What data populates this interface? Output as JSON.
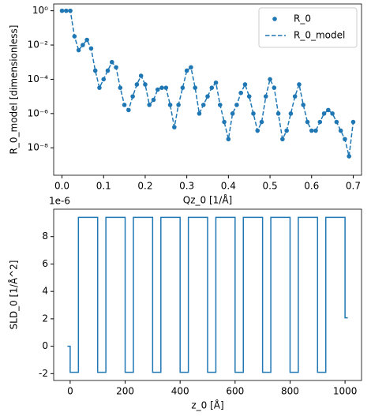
{
  "chart_data": [
    {
      "type": "line",
      "ylabel": "R_0_model [dimensionless]",
      "xlabel": "Qz_0 [1/Å]",
      "log_y": true,
      "legend": "upper right",
      "x": [
        0,
        0.01,
        0.02,
        0.03,
        0.04,
        0.05,
        0.06,
        0.07,
        0.08,
        0.09,
        0.1,
        0.11,
        0.12,
        0.13,
        0.14,
        0.15,
        0.16,
        0.17,
        0.18,
        0.19,
        0.2,
        0.21,
        0.22,
        0.23,
        0.24,
        0.25,
        0.26,
        0.27,
        0.28,
        0.29,
        0.3,
        0.31,
        0.32,
        0.33,
        0.34,
        0.35,
        0.36,
        0.37,
        0.38,
        0.39,
        0.4,
        0.41,
        0.42,
        0.43,
        0.44,
        0.45,
        0.46,
        0.47,
        0.48,
        0.49,
        0.5,
        0.51,
        0.52,
        0.53,
        0.54,
        0.55,
        0.56,
        0.57,
        0.58,
        0.59,
        0.6,
        0.61,
        0.62,
        0.63,
        0.64,
        0.65,
        0.66,
        0.67,
        0.68,
        0.69,
        0.7
      ],
      "series": [
        {
          "name": "R_0",
          "color": "#1f77b4",
          "marker": "o",
          "values": [
            1,
            1,
            1,
            0.032,
            0.005,
            0.01,
            0.02,
            0.0063,
            0.00032,
            3.2e-05,
            0.0001,
            0.00032,
            0.001,
            0.0005,
            3.2e-05,
            3.2e-06,
            1.6e-06,
            1e-05,
            5e-05,
            0.00016,
            5e-05,
            3.2e-06,
            6.3e-06,
            2.5e-05,
            3.2e-05,
            3.2e-05,
            3.2e-06,
            1.6e-07,
            3.2e-06,
            3.2e-05,
            0.00032,
            0.0005,
            3.2e-05,
            1e-06,
            3.2e-06,
            1e-05,
            3.2e-05,
            6.3e-05,
            3.2e-06,
            3.2e-07,
            3.2e-08,
            1e-06,
            3.2e-06,
            1.6e-05,
            5e-05,
            1e-05,
            1e-06,
            1e-07,
            3.2e-07,
            1e-05,
            0.0001,
            3.2e-05,
            1e-06,
            3.2e-08,
            1e-07,
            1e-06,
            1e-05,
            5e-05,
            3.2e-06,
            3.2e-07,
            1e-07,
            1e-07,
            3.2e-07,
            1e-06,
            1.6e-06,
            1e-06,
            3.2e-07,
            1e-07,
            3.2e-08,
            3.2e-09,
            3.2e-07
          ]
        },
        {
          "name": "R_0_model",
          "color": "#1f77b4",
          "linestyle": "dashed",
          "values": [
            1,
            1,
            1,
            0.032,
            0.005,
            0.01,
            0.02,
            0.0063,
            0.00032,
            3.2e-05,
            0.0001,
            0.00032,
            0.001,
            0.0005,
            3.2e-05,
            3.2e-06,
            1.6e-06,
            1e-05,
            5e-05,
            0.00016,
            5e-05,
            3.2e-06,
            6.3e-06,
            2.5e-05,
            3.2e-05,
            3.2e-05,
            3.2e-06,
            1.6e-07,
            3.2e-06,
            3.2e-05,
            0.00032,
            0.0005,
            3.2e-05,
            1e-06,
            3.2e-06,
            1e-05,
            3.2e-05,
            6.3e-05,
            3.2e-06,
            3.2e-07,
            3.2e-08,
            1e-06,
            3.2e-06,
            1.6e-05,
            5e-05,
            1e-05,
            1e-06,
            1e-07,
            3.2e-07,
            1e-05,
            0.0001,
            3.2e-05,
            1e-06,
            3.2e-08,
            1e-07,
            1e-06,
            1e-05,
            5e-05,
            3.2e-06,
            3.2e-07,
            1e-07,
            1e-07,
            3.2e-07,
            1e-06,
            1.6e-06,
            1e-06,
            3.2e-07,
            1e-07,
            3.2e-08,
            3.2e-09,
            3.2e-07
          ]
        }
      ],
      "xlim": [
        -0.02,
        0.72
      ],
      "xticks": [
        {
          "value": 0,
          "label": "0.0"
        },
        0.1,
        0.2,
        0.3,
        0.4,
        0.5,
        0.6,
        0.7
      ],
      "ylim": [
        2.5e-10,
        2.5
      ],
      "yticks": [
        {
          "value": 1,
          "label": "10⁰"
        },
        {
          "value": 0.01,
          "label": "10⁻²"
        },
        {
          "value": 0.0001,
          "label": "10⁻⁴"
        },
        {
          "value": 1e-06,
          "label": "10⁻⁶"
        },
        {
          "value": 1e-08,
          "label": "10⁻⁸"
        }
      ]
    },
    {
      "type": "line",
      "ylabel": "SLD_0 [1/Å^2]",
      "xlabel": "z_0 [Å]",
      "offset_text": "1e-6",
      "color": "#1f77b4",
      "x": [
        -10,
        0,
        0,
        30,
        30,
        100,
        100,
        130,
        130,
        200,
        200,
        230,
        230,
        300,
        300,
        330,
        330,
        400,
        400,
        430,
        430,
        500,
        500,
        530,
        530,
        600,
        600,
        630,
        630,
        700,
        700,
        730,
        730,
        800,
        800,
        830,
        830,
        900,
        900,
        930,
        930,
        1000,
        1000,
        1010
      ],
      "values": [
        0,
        0,
        -1.9,
        -1.9,
        9.4,
        9.4,
        -1.9,
        -1.9,
        9.4,
        9.4,
        -1.9,
        -1.9,
        9.4,
        9.4,
        -1.9,
        -1.9,
        9.4,
        9.4,
        -1.9,
        -1.9,
        9.4,
        9.4,
        -1.9,
        -1.9,
        9.4,
        9.4,
        -1.9,
        -1.9,
        9.4,
        9.4,
        -1.9,
        -1.9,
        9.4,
        9.4,
        -1.9,
        -1.9,
        9.4,
        9.4,
        -1.9,
        -1.9,
        9.4,
        9.4,
        2.07,
        2.07
      ],
      "xlim": [
        -60,
        1060
      ],
      "xticks": [
        0,
        200,
        400,
        600,
        800,
        1000
      ],
      "ylim": [
        -2.5,
        10
      ],
      "yticks": [
        -2,
        0,
        2,
        4,
        6,
        8
      ]
    }
  ]
}
